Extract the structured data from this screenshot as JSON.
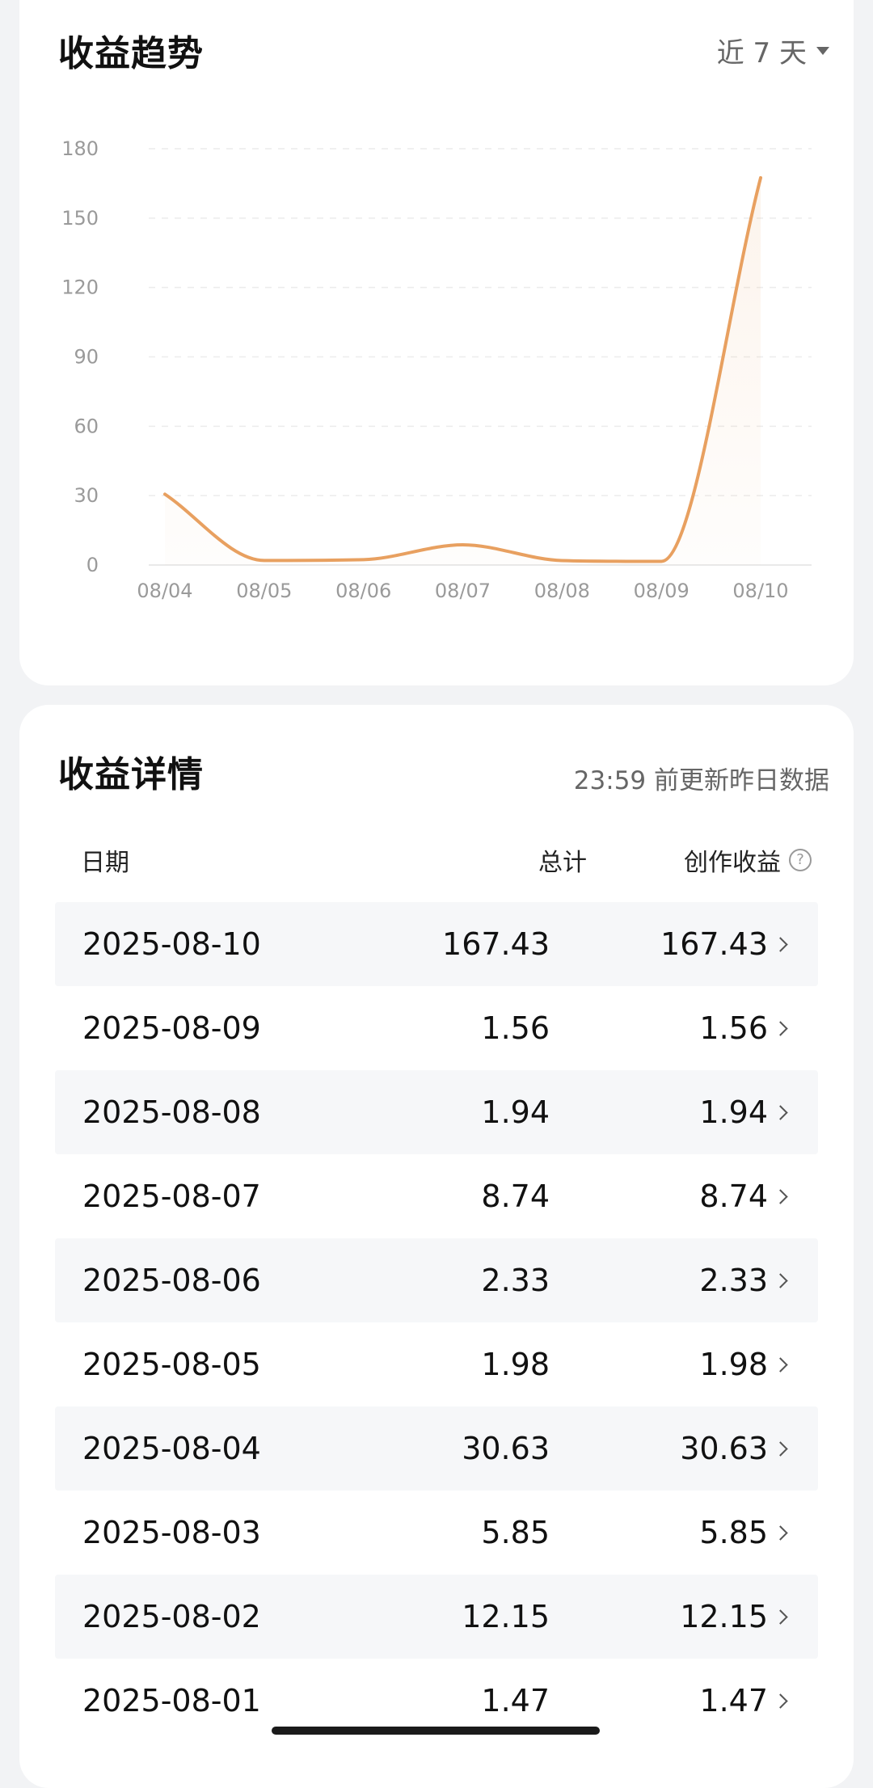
{
  "trend": {
    "title": "收益趋势",
    "range_label": "近 7 天"
  },
  "chart_data": {
    "type": "line",
    "x": [
      "08/04",
      "08/05",
      "08/06",
      "08/07",
      "08/08",
      "08/09",
      "08/10"
    ],
    "series": [
      {
        "values": [
          30.63,
          1.98,
          2.33,
          8.74,
          1.94,
          1.56,
          167.43
        ]
      }
    ],
    "yticks": [
      0,
      30,
      60,
      90,
      120,
      150,
      180
    ],
    "ylim": [
      0,
      180
    ],
    "grid": true,
    "line_color": "#e8a060"
  },
  "detail": {
    "title": "收益详情",
    "update_note": "23:59 前更新昨日数据",
    "columns": {
      "date": "日期",
      "total": "总计",
      "earning": "创作收益"
    },
    "help_glyph": "?",
    "rows": [
      {
        "date": "2025-08-10",
        "total": "167.43",
        "earning": "167.43"
      },
      {
        "date": "2025-08-09",
        "total": "1.56",
        "earning": "1.56"
      },
      {
        "date": "2025-08-08",
        "total": "1.94",
        "earning": "1.94"
      },
      {
        "date": "2025-08-07",
        "total": "8.74",
        "earning": "8.74"
      },
      {
        "date": "2025-08-06",
        "total": "2.33",
        "earning": "2.33"
      },
      {
        "date": "2025-08-05",
        "total": "1.98",
        "earning": "1.98"
      },
      {
        "date": "2025-08-04",
        "total": "30.63",
        "earning": "30.63"
      },
      {
        "date": "2025-08-03",
        "total": "5.85",
        "earning": "5.85"
      },
      {
        "date": "2025-08-02",
        "total": "12.15",
        "earning": "12.15"
      },
      {
        "date": "2025-08-01",
        "total": "1.47",
        "earning": "1.47"
      }
    ]
  }
}
